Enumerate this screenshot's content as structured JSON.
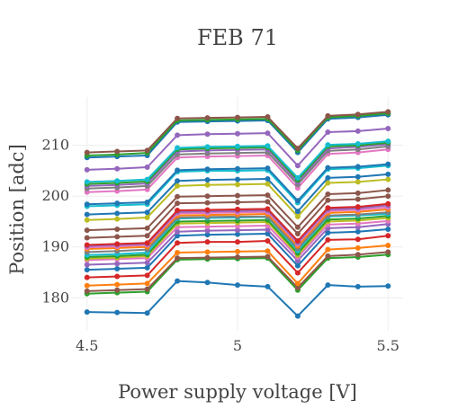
{
  "chart_data": {
    "type": "line",
    "title": "FEB 71",
    "xlabel": "Power supply voltage [V]",
    "ylabel": "Position [adc]",
    "x": [
      4.5,
      4.6,
      4.7,
      4.8,
      4.9,
      5.0,
      5.1,
      5.2,
      5.3,
      5.4,
      5.5
    ],
    "xlim": [
      4.45,
      5.55
    ],
    "ylim": [
      173.5,
      219.5
    ],
    "x_ticks": [
      "4.5",
      "5",
      "5.5"
    ],
    "x_tick_values": [
      4.5,
      5.0,
      5.5
    ],
    "y_ticks": [
      "180",
      "190",
      "200",
      "210"
    ],
    "y_tick_values": [
      180,
      190,
      200,
      210
    ],
    "grid": true,
    "legend": "none",
    "series": [
      {
        "color": "#1f77b4",
        "values": [
          177.2,
          177.1,
          177.0,
          183.3,
          183.0,
          182.5,
          182.2,
          176.4,
          182.5,
          182.2,
          182.3
        ]
      },
      {
        "color": "#2ca02c",
        "values": [
          180.8,
          181.0,
          181.2,
          187.5,
          187.6,
          187.7,
          187.8,
          181.5,
          187.8,
          188.0,
          188.5
        ]
      },
      {
        "color": "#8c564b",
        "values": [
          181.3,
          181.5,
          181.7,
          187.8,
          187.9,
          188.0,
          188.1,
          182.0,
          188.2,
          188.5,
          189.0
        ]
      },
      {
        "color": "#ff7f0e",
        "values": [
          182.4,
          182.6,
          182.8,
          188.9,
          189.0,
          189.1,
          189.2,
          182.8,
          189.5,
          189.8,
          190.3
        ]
      },
      {
        "color": "#d62728",
        "values": [
          184.0,
          184.2,
          184.4,
          190.8,
          191.0,
          191.0,
          191.2,
          184.9,
          191.4,
          191.5,
          192.2
        ]
      },
      {
        "color": "#1f77b4",
        "values": [
          185.5,
          185.7,
          185.9,
          192.2,
          192.4,
          192.5,
          192.6,
          186.3,
          192.8,
          193.0,
          193.5
        ]
      },
      {
        "color": "#9467bd",
        "values": [
          186.5,
          186.7,
          186.9,
          193.0,
          193.2,
          193.3,
          193.4,
          187.3,
          193.7,
          193.9,
          194.5
        ]
      },
      {
        "color": "#e377c2",
        "values": [
          187.4,
          187.6,
          187.8,
          193.9,
          194.0,
          194.1,
          194.2,
          188.0,
          194.4,
          194.6,
          195.1
        ]
      },
      {
        "color": "#bcbd22",
        "values": [
          187.7,
          187.9,
          188.2,
          194.6,
          194.7,
          194.8,
          194.9,
          188.4,
          195.0,
          195.2,
          195.7
        ]
      },
      {
        "color": "#2ca02c",
        "values": [
          188.0,
          188.2,
          188.5,
          195.0,
          195.1,
          195.2,
          195.3,
          188.8,
          195.4,
          195.6,
          196.1
        ]
      },
      {
        "color": "#17becf",
        "values": [
          188.4,
          188.6,
          188.9,
          195.6,
          195.7,
          195.8,
          195.9,
          189.3,
          196.0,
          196.2,
          196.5
        ]
      },
      {
        "color": "#7f7f7f",
        "values": [
          189.0,
          189.2,
          189.5,
          195.8,
          195.9,
          196.0,
          196.0,
          189.7,
          196.2,
          196.4,
          196.8
        ]
      },
      {
        "color": "#ff7f0e",
        "values": [
          189.6,
          189.8,
          190.0,
          196.2,
          196.3,
          196.4,
          196.5,
          190.2,
          196.7,
          196.9,
          197.4
        ]
      },
      {
        "color": "#e377c2",
        "values": [
          189.9,
          190.1,
          190.4,
          196.6,
          196.7,
          196.8,
          196.9,
          190.6,
          197.1,
          197.3,
          197.8
        ]
      },
      {
        "color": "#9467bd",
        "values": [
          190.2,
          190.4,
          190.6,
          196.9,
          197.0,
          197.1,
          197.2,
          190.9,
          197.4,
          197.6,
          198.2
        ]
      },
      {
        "color": "#d62728",
        "values": [
          190.4,
          190.6,
          190.8,
          197.2,
          197.3,
          197.4,
          197.5,
          191.2,
          197.7,
          197.9,
          198.5
        ]
      },
      {
        "color": "#8c564b",
        "values": [
          191.8,
          192.0,
          192.2,
          198.6,
          198.7,
          198.8,
          198.9,
          192.6,
          199.2,
          199.4,
          200.0
        ]
      },
      {
        "color": "#8c564b",
        "values": [
          193.3,
          193.5,
          193.7,
          199.9,
          200.0,
          200.1,
          200.2,
          193.9,
          200.4,
          200.6,
          201.2
        ]
      },
      {
        "color": "#bcbd22",
        "values": [
          195.3,
          195.5,
          195.8,
          202.0,
          202.2,
          202.3,
          202.4,
          196.0,
          202.6,
          202.8,
          203.3
        ]
      },
      {
        "color": "#1f77b4",
        "values": [
          196.4,
          196.6,
          196.8,
          203.0,
          203.2,
          203.3,
          203.4,
          197.0,
          203.6,
          203.8,
          204.3
        ]
      },
      {
        "color": "#17becf",
        "values": [
          198.0,
          198.2,
          198.4,
          204.8,
          205.0,
          205.0,
          205.1,
          198.7,
          205.3,
          205.5,
          206.0
        ]
      },
      {
        "color": "#1f77b4",
        "values": [
          198.4,
          198.6,
          198.8,
          205.1,
          205.3,
          205.4,
          205.5,
          199.1,
          205.6,
          205.8,
          206.3
        ]
      },
      {
        "color": "#e377c2",
        "values": [
          200.8,
          201.0,
          201.3,
          207.6,
          207.8,
          207.9,
          208.0,
          201.6,
          208.3,
          208.6,
          209.2
        ]
      },
      {
        "color": "#7f7f7f",
        "values": [
          201.5,
          201.7,
          202.0,
          208.2,
          208.4,
          208.5,
          208.6,
          202.3,
          208.9,
          209.2,
          209.8
        ]
      },
      {
        "color": "#9467bd",
        "values": [
          202.0,
          202.2,
          202.5,
          208.8,
          209.0,
          209.1,
          209.2,
          202.8,
          209.4,
          209.7,
          210.2
        ]
      },
      {
        "color": "#2ca02c",
        "values": [
          202.4,
          202.6,
          202.9,
          209.2,
          209.4,
          209.5,
          209.6,
          203.2,
          209.8,
          210.0,
          210.5
        ]
      },
      {
        "color": "#17becf",
        "values": [
          202.8,
          203.0,
          203.3,
          209.5,
          209.7,
          209.8,
          209.9,
          203.6,
          210.1,
          210.3,
          210.8
        ]
      },
      {
        "color": "#9467bd",
        "values": [
          205.2,
          205.4,
          205.7,
          212.0,
          212.2,
          212.3,
          212.4,
          206.0,
          212.6,
          212.8,
          213.3
        ]
      },
      {
        "color": "#1f77b4",
        "values": [
          207.6,
          207.8,
          208.0,
          214.6,
          214.7,
          214.8,
          214.9,
          208.6,
          215.2,
          215.5,
          216.0
        ]
      },
      {
        "color": "#2ca02c",
        "values": [
          208.0,
          208.2,
          208.5,
          214.9,
          215.0,
          215.1,
          215.2,
          209.0,
          215.5,
          215.8,
          216.3
        ]
      },
      {
        "color": "#8c564b",
        "values": [
          208.6,
          208.8,
          209.0,
          215.3,
          215.4,
          215.5,
          215.6,
          209.4,
          215.8,
          216.1,
          216.6
        ]
      }
    ]
  }
}
